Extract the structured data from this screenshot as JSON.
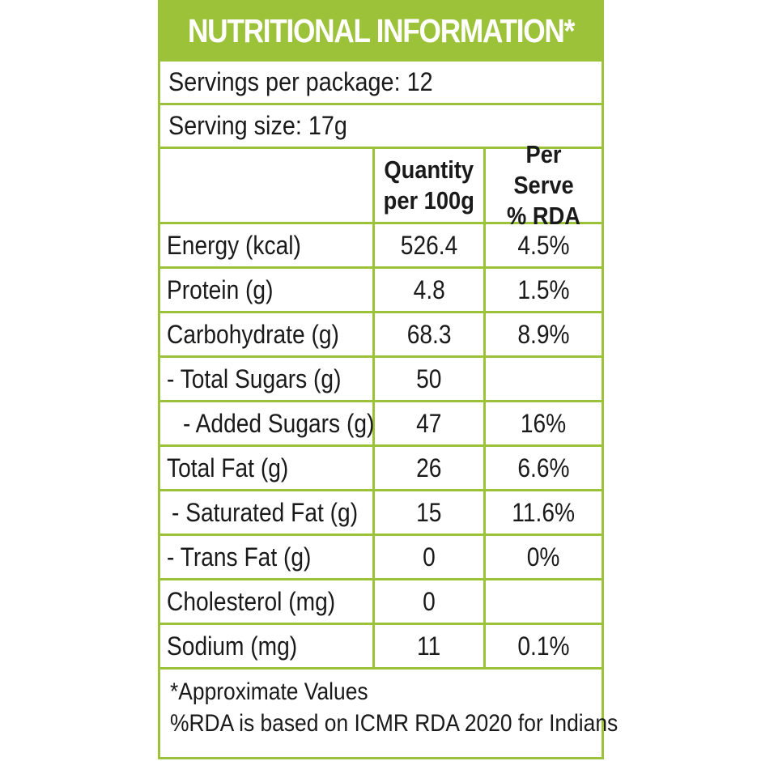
{
  "title": "NUTRITIONAL INFORMATION*",
  "servings_per_package": "Servings per package: 12",
  "serving_size": "Serving size: 17g",
  "columns": {
    "quantity_line1": "Quantity",
    "quantity_line2": "per 100g",
    "rda_line1": "Per Serve",
    "rda_line2": "% RDA"
  },
  "rows": [
    {
      "label": "Energy (kcal)",
      "qty": "526.4",
      "rda": "4.5%"
    },
    {
      "label": "Protein (g)",
      "qty": "4.8",
      "rda": "1.5%"
    },
    {
      "label": "Carbohydrate (g)",
      "qty": "68.3",
      "rda": "8.9%"
    },
    {
      "label": "- Total Sugars (g)",
      "qty": "50",
      "rda": ""
    },
    {
      "label": "- Added Sugars (g)",
      "qty": "47",
      "rda": "16%"
    },
    {
      "label": "Total Fat (g)",
      "qty": "26",
      "rda": "6.6%"
    },
    {
      "label": "- Saturated Fat (g)",
      "qty": "15",
      "rda": "11.6%"
    },
    {
      "label": "- Trans Fat (g)",
      "qty": "0",
      "rda": "0%"
    },
    {
      "label": "Cholesterol (mg)",
      "qty": "0",
      "rda": ""
    },
    {
      "label": "Sodium (mg)",
      "qty": "11",
      "rda": "0.1%"
    }
  ],
  "footer": {
    "line1": "*Approximate Values",
    "line2": "%RDA is based on ICMR RDA 2020 for Indians"
  },
  "colors": {
    "accent": "#9cc23a",
    "text": "#1a1a1a"
  }
}
